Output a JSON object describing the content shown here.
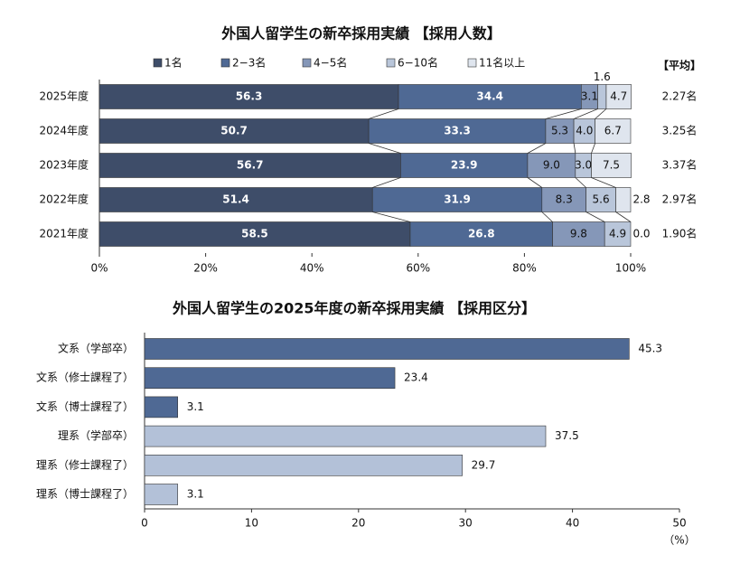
{
  "chart_data": [
    {
      "type": "stacked-bar-horizontal",
      "title": "外国人留学生の新卒採用実績 【採用人数】",
      "categories": [
        "2025年度",
        "2024年度",
        "2023年度",
        "2022年度",
        "2021年度"
      ],
      "series": [
        {
          "name": "1名",
          "color": "#3e4d69",
          "values": [
            56.3,
            50.7,
            56.7,
            51.4,
            58.5
          ],
          "value_labels": [
            "56.3",
            "50.7",
            "56.7",
            "51.4",
            "58.5"
          ]
        },
        {
          "name": "2−3名",
          "color": "#4f6994",
          "values": [
            34.4,
            33.3,
            23.9,
            31.9,
            26.8
          ],
          "value_labels": [
            "34.4",
            "33.3",
            "23.9",
            "31.9",
            "26.8"
          ]
        },
        {
          "name": "4−5名",
          "color": "#8597b8",
          "values": [
            3.1,
            5.3,
            9.0,
            8.3,
            9.8
          ],
          "value_labels": [
            "3.1",
            "5.3",
            "9.0",
            "8.3",
            "9.8"
          ]
        },
        {
          "name": "6−10名",
          "color": "#b9c6da",
          "values": [
            1.6,
            4.0,
            3.0,
            5.6,
            4.9
          ],
          "value_labels": [
            "1.6",
            "4.0",
            "3.0",
            "5.6",
            "4.9"
          ]
        },
        {
          "name": "11名以上",
          "color": "#dfe5ee",
          "values": [
            4.7,
            6.7,
            7.5,
            2.8,
            0.0
          ],
          "value_labels": [
            "4.7",
            "6.7",
            "7.5",
            "2.8",
            "0.0"
          ]
        }
      ],
      "averages": {
        "title": "【平均】",
        "values": [
          2.27,
          3.25,
          3.37,
          2.97,
          1.9
        ],
        "value_labels": [
          "2.27名",
          "3.25名",
          "3.37名",
          "2.97名",
          "1.90名"
        ]
      },
      "xlim": [
        0,
        100
      ],
      "xticks": [
        {
          "value": 0,
          "label": "0%"
        },
        {
          "value": 20,
          "label": "20%"
        },
        {
          "value": 40,
          "label": "40%"
        },
        {
          "value": 60,
          "label": "60%"
        },
        {
          "value": 80,
          "label": "80%"
        },
        {
          "value": 100,
          "label": "100%"
        }
      ]
    },
    {
      "type": "bar-horizontal",
      "title": "外国人留学生の2025年度の新卒採用実績 【採用区分】",
      "categories": [
        "文系（学部卒）",
        "文系（修士課程了）",
        "文系（博士課程了）",
        "理系（学部卒）",
        "理系（修士課程了）",
        "理系（博士課程了）"
      ],
      "values": [
        45.3,
        23.4,
        3.1,
        37.5,
        29.7,
        3.1
      ],
      "colors": [
        "#4f6994",
        "#4f6994",
        "#4f6994",
        "#b3c1d8",
        "#b3c1d8",
        "#b3c1d8"
      ],
      "xlim": [
        0,
        50
      ],
      "xticks": [
        0,
        10,
        20,
        30,
        40,
        50
      ],
      "x_unit": "（%）"
    }
  ]
}
